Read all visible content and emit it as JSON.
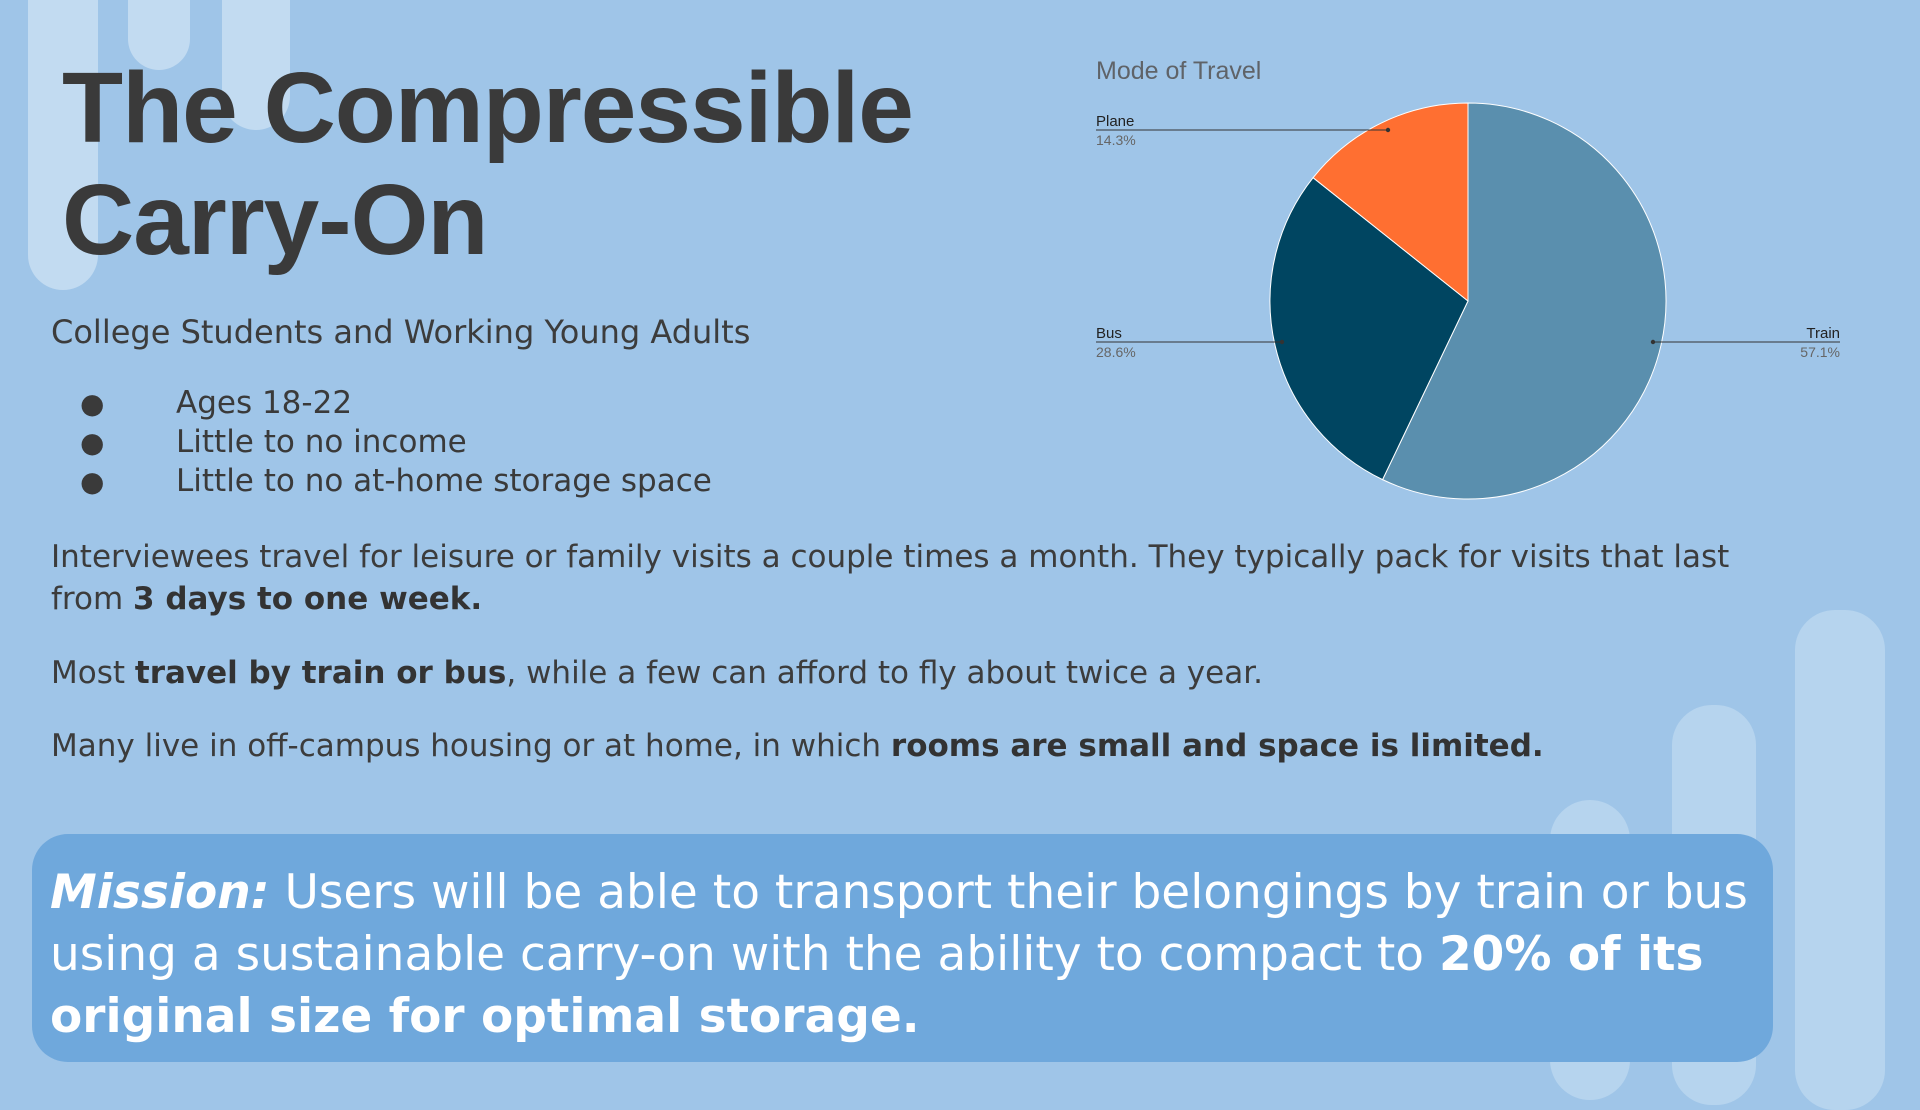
{
  "title_line1": "The Compressible",
  "title_line2": "Carry-On",
  "subtitle": "College Students and Working Young Adults",
  "bullets": [
    "Ages 18-22",
    "Little to no income",
    "Little to no at-home storage space"
  ],
  "bullet_glyph": "●",
  "para1": {
    "pre": "Interviewees travel for leisure or family visits a couple times a month. They typically pack for visits that last from ",
    "bold": "3 days to one week."
  },
  "para2": {
    "pre": "Most ",
    "bold": "travel by train or bus",
    "post": ", while a few can afford to fly about twice a year."
  },
  "para3": {
    "pre": "Many live in off-campus housing or at home, in which ",
    "bold": "rooms are small and space is limited."
  },
  "mission": {
    "label": "Mission:",
    "text": " Users will be able to transport their belongings by train or bus using a sustainable carry-on with the ability to compact to ",
    "bold": "20% of its original size for optimal storage."
  },
  "chart_data": {
    "type": "pie",
    "title": "Mode of Travel",
    "slices": [
      {
        "label": "Train",
        "value": 57.1,
        "pct_label": "57.1%",
        "color": "#5a8fae"
      },
      {
        "label": "Bus",
        "value": 28.6,
        "pct_label": "28.6%",
        "color": "#004561"
      },
      {
        "label": "Plane",
        "value": 14.3,
        "pct_label": "14.3%",
        "color": "#ff6f31"
      }
    ],
    "start": "12 o'clock",
    "direction": "clockwise",
    "legend": "callout labels"
  },
  "colors": {
    "background": "#9fc5e8",
    "mission_box": "#6fa8dc",
    "text": "#3a3a3a"
  }
}
